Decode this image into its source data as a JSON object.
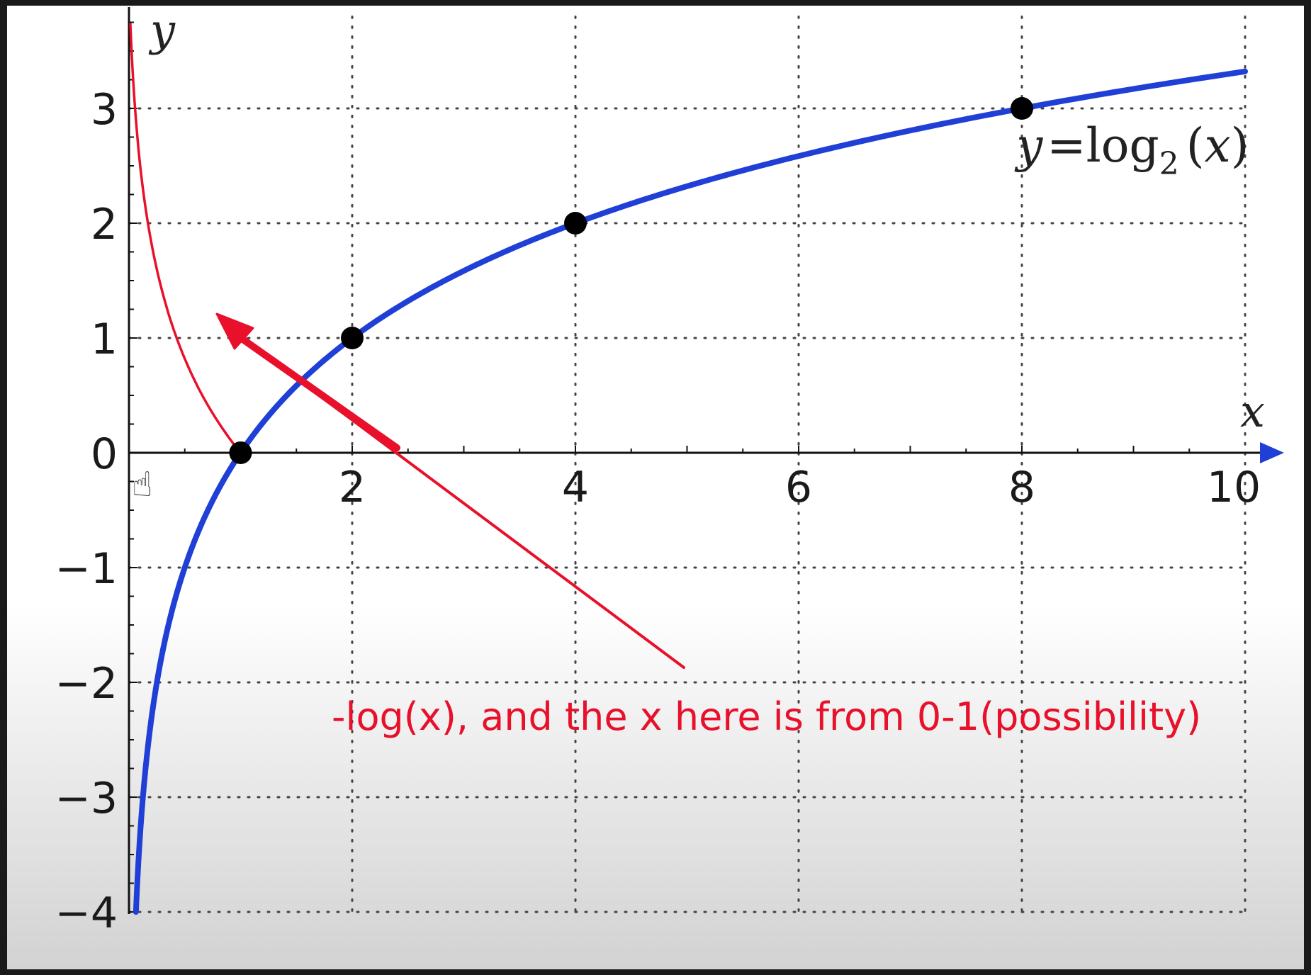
{
  "chart_data": {
    "type": "line",
    "xlabel": "x",
    "ylabel": "y",
    "xlim": [
      0,
      10
    ],
    "ylim": [
      -4,
      3.8
    ],
    "x_ticks": [
      2,
      4,
      6,
      8,
      10
    ],
    "x_tick_labels": [
      "2",
      "4",
      "6",
      "8",
      "10"
    ],
    "y_ticks": [
      3,
      2,
      1,
      0,
      -1,
      -2,
      -3,
      -4
    ],
    "y_tick_labels": [
      "3",
      "2",
      "1",
      "0",
      "−1",
      "−2",
      "−3",
      "−4"
    ],
    "grid": true,
    "series": [
      {
        "name": "log2(x)",
        "label_parts": [
          "y",
          "=",
          "log",
          "2",
          "(",
          "x",
          ")"
        ],
        "function": "log2",
        "x_range": [
          0.0625,
          10
        ],
        "color": "#1f3fd6",
        "points": [
          {
            "x": 1,
            "y": 0
          },
          {
            "x": 2,
            "y": 1
          },
          {
            "x": 4,
            "y": 2
          },
          {
            "x": 8,
            "y": 3
          }
        ]
      },
      {
        "name": "-log(x)",
        "function": "neglog_handdrawn",
        "x_range": [
          0.01,
          1
        ],
        "color": "#e8102a"
      }
    ],
    "annotation": {
      "text": "-log(x), and the x here is from 0-1(possibility)",
      "color": "#e8102a"
    }
  }
}
